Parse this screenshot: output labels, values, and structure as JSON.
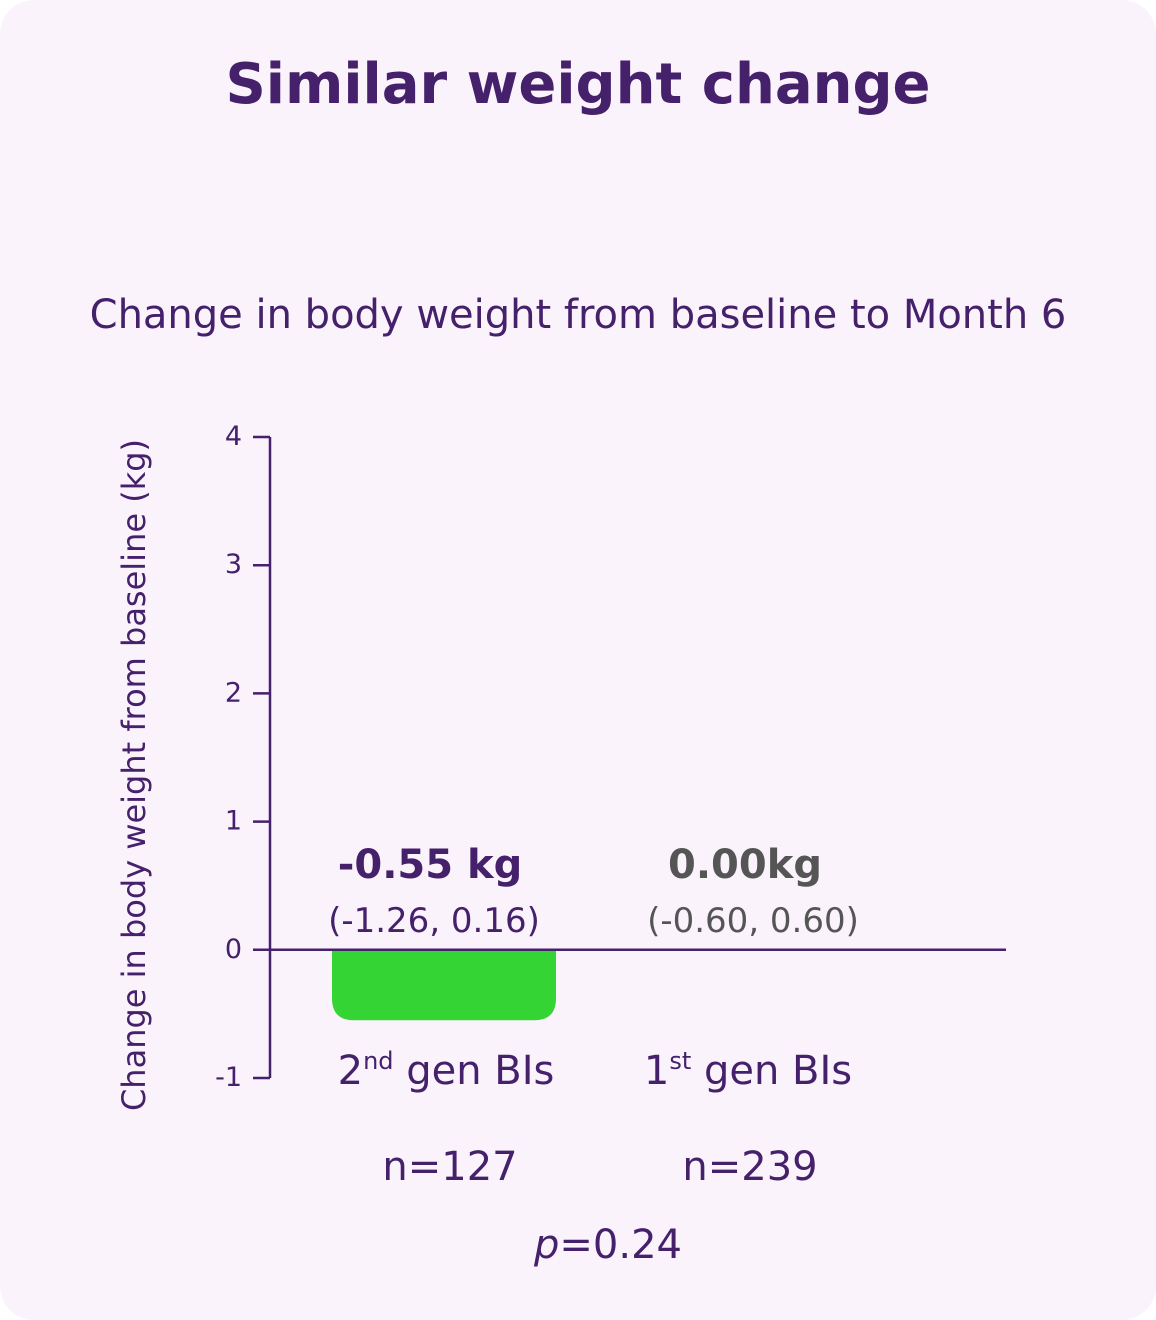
{
  "title": "Similar weight change",
  "subtitle": "Change in body weight from baseline to Month 6",
  "colors": {
    "background": "#faf3fc",
    "text_purple": "#45206b",
    "text_gray": "#555555",
    "bar_green": "#33d433",
    "axis": "#45206b"
  },
  "chart_data": {
    "type": "bar",
    "title": "Change in body weight from baseline to Month 6",
    "ylabel": "Change in body weight from baseline (kg)",
    "xlabel": "",
    "ylim": [
      -1,
      4
    ],
    "yticks": [
      "-1",
      "0",
      "1",
      "2",
      "3",
      "4"
    ],
    "categories": [
      {
        "base": "2",
        "sup": "nd",
        "rest": " gen BIs"
      },
      {
        "base": "1",
        "sup": "st",
        "rest": " gen BIs"
      }
    ],
    "values": [
      -0.55,
      0.0
    ],
    "value_labels": [
      "-0.55 kg",
      "0.00kg"
    ],
    "ci_labels": [
      "(-1.26, 0.16)",
      "(-0.60, 0.60)"
    ],
    "n_labels": [
      "n=127",
      "n=239"
    ],
    "p_value": {
      "symbol": "p",
      "text": "=0.24"
    }
  }
}
